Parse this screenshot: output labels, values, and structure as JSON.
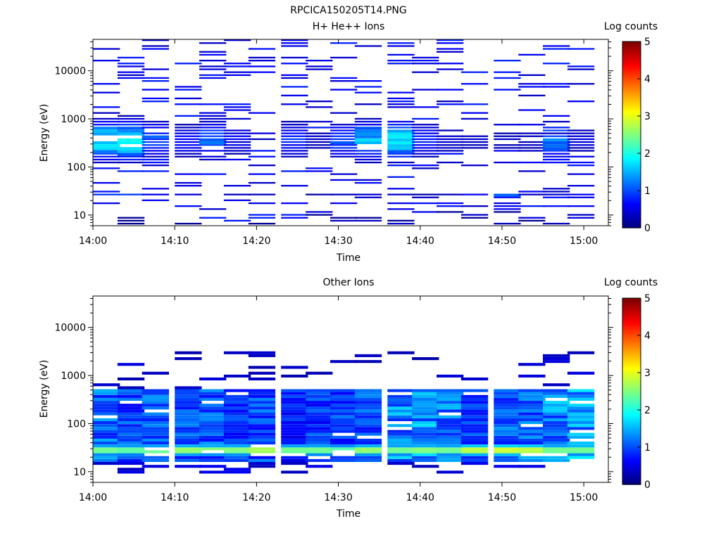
{
  "figure_title": "RPCICA150205T14.PNG",
  "chart_data": [
    {
      "type": "heatmap",
      "title": "H+ He++ Ions",
      "xlabel": "Time",
      "ylabel": "Energy (eV)",
      "x_range": [
        "14:00",
        "15:03"
      ],
      "x_ticks": [
        "14:00",
        "14:10",
        "14:20",
        "14:30",
        "14:40",
        "14:50",
        "15:00"
      ],
      "y_scale": "log",
      "y_range": [
        6,
        45000
      ],
      "y_ticks": [
        "10",
        "100",
        "1000",
        "10000"
      ],
      "colorbar": {
        "label": "Log counts",
        "range": [
          0,
          5
        ],
        "ticks": [
          "0",
          "1",
          "2",
          "3",
          "4",
          "5"
        ],
        "colormap": "jet"
      },
      "columns": [
        "14:00",
        "14:03",
        "14:06",
        "14:10",
        "14:13",
        "14:16",
        "14:19",
        "14:23",
        "14:26",
        "14:29",
        "14:32",
        "14:36",
        "14:39",
        "14:42",
        "14:45",
        "14:49",
        "14:52",
        "14:55",
        "14:58"
      ],
      "profile_center_ev": 350,
      "profile_width_decades": 0.25,
      "peak_log_counts": [
        2.2,
        2.4,
        1.2,
        0.8,
        1.3,
        0.6,
        0.3,
        1.0,
        0.4,
        1.1,
        1.8,
        2.2,
        0.9,
        0.5,
        0.4,
        0.4,
        0.4,
        1.4,
        0.5
      ],
      "sparse_log_counts_range": [
        0.3,
        0.8
      ],
      "low_energy_band_ev": 25,
      "low_energy_band_log_counts": [
        0.9,
        0.9,
        0.5,
        0.4,
        0,
        0.3,
        0.3,
        0,
        0.2,
        0.3,
        0.4,
        0.4,
        0.2,
        0.3,
        0.6,
        1.1,
        0.3,
        0.4,
        0.6
      ]
    },
    {
      "type": "heatmap",
      "title": "Other Ions",
      "xlabel": "Time",
      "ylabel": "Energy (eV)",
      "x_range": [
        "14:00",
        "15:03"
      ],
      "x_ticks": [
        "14:00",
        "14:10",
        "14:20",
        "14:30",
        "14:40",
        "14:50",
        "15:00"
      ],
      "y_scale": "log",
      "y_range": [
        6,
        45000
      ],
      "y_ticks": [
        "10",
        "100",
        "1000",
        "10000"
      ],
      "colorbar": {
        "label": "Log counts",
        "range": [
          0,
          5
        ],
        "ticks": [
          "0",
          "1",
          "2",
          "3",
          "4",
          "5"
        ],
        "colormap": "jet"
      },
      "columns": [
        "14:00",
        "14:03",
        "14:06",
        "14:10",
        "14:13",
        "14:16",
        "14:19",
        "14:23",
        "14:26",
        "14:29",
        "14:32",
        "14:36",
        "14:39",
        "14:42",
        "14:45",
        "14:49",
        "14:52",
        "14:55",
        "14:58"
      ],
      "band_ev_range": [
        15,
        550
      ],
      "band_base_log_counts": [
        1.2,
        1.0,
        1.1,
        1.0,
        1.1,
        0.9,
        1.0,
        0.8,
        0.9,
        1.0,
        1.1,
        1.3,
        1.4,
        1.2,
        0.9,
        1.1,
        1.2,
        1.3,
        1.4
      ],
      "peak_band_ev": 28,
      "peak_log_counts": [
        2.6,
        2.5,
        2.6,
        2.8,
        2.7,
        2.7,
        2.9,
        2.6,
        2.6,
        2.4,
        2.8,
        2.6,
        2.7,
        2.6,
        3.0,
        3.1,
        3.0,
        2.6,
        2.6
      ],
      "sparse_high_energy_log_counts_range": [
        0.2,
        0.5
      ]
    }
  ]
}
